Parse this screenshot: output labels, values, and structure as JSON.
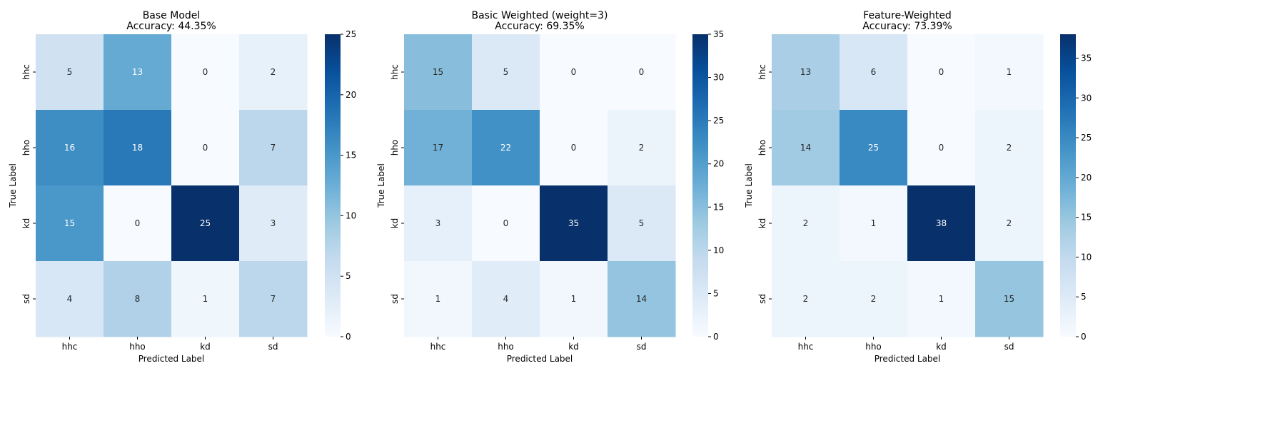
{
  "chart_data": [
    {
      "type": "heatmap",
      "title": "Base Model",
      "subtitle": "Accuracy: 44.35%",
      "xlabel": "Predicted Label",
      "ylabel": "True Label",
      "x_categories": [
        "hhc",
        "hho",
        "kd",
        "sd"
      ],
      "y_categories": [
        "hhc",
        "hho",
        "kd",
        "sd"
      ],
      "values": [
        [
          5,
          13,
          0,
          2
        ],
        [
          16,
          18,
          0,
          7
        ],
        [
          15,
          0,
          25,
          3
        ],
        [
          4,
          8,
          1,
          7
        ]
      ],
      "colorbar": {
        "min": 0,
        "max": 25,
        "ticks": [
          0,
          5,
          10,
          15,
          20,
          25
        ]
      },
      "colormap": "Blues"
    },
    {
      "type": "heatmap",
      "title": "Basic Weighted (weight=3)",
      "subtitle": "Accuracy: 69.35%",
      "xlabel": "Predicted Label",
      "ylabel": "True Label",
      "x_categories": [
        "hhc",
        "hho",
        "kd",
        "sd"
      ],
      "y_categories": [
        "hhc",
        "hho",
        "kd",
        "sd"
      ],
      "values": [
        [
          15,
          5,
          0,
          0
        ],
        [
          17,
          22,
          0,
          2
        ],
        [
          3,
          0,
          35,
          5
        ],
        [
          1,
          4,
          1,
          14
        ]
      ],
      "colorbar": {
        "min": 0,
        "max": 35,
        "ticks": [
          0,
          5,
          10,
          15,
          20,
          25,
          30,
          35
        ]
      },
      "colormap": "Blues"
    },
    {
      "type": "heatmap",
      "title": "Feature-Weighted",
      "subtitle": "Accuracy: 73.39%",
      "xlabel": "Predicted Label",
      "ylabel": "True Label",
      "x_categories": [
        "hhc",
        "hho",
        "kd",
        "sd"
      ],
      "y_categories": [
        "hhc",
        "hho",
        "kd",
        "sd"
      ],
      "values": [
        [
          13,
          6,
          0,
          1
        ],
        [
          14,
          25,
          0,
          2
        ],
        [
          2,
          1,
          38,
          2
        ],
        [
          2,
          2,
          1,
          15
        ]
      ],
      "colorbar": {
        "min": 0,
        "max": 38,
        "ticks": [
          0,
          5,
          10,
          15,
          20,
          25,
          30,
          35
        ]
      },
      "colormap": "Blues"
    }
  ]
}
